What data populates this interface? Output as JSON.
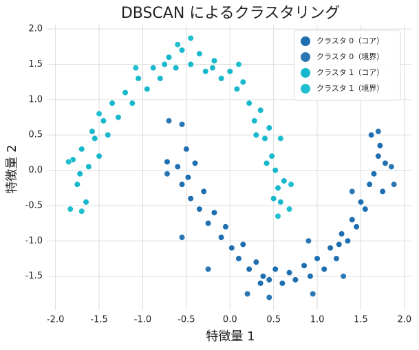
{
  "chart_data": {
    "type": "scatter",
    "title": "DBSCAN によるクラスタリング",
    "x_label": "特徴量 1",
    "y_label": "特徴量 2",
    "xlim": [
      -2.1,
      2.08
    ],
    "ylim": [
      -1.98,
      2.06
    ],
    "xticks": [
      {
        "value": -2,
        "label": "-2.0"
      },
      -1.5,
      {
        "value": -1,
        "label": "-1.0"
      },
      -0.5,
      {
        "value": 0,
        "label": "0.0"
      },
      0.5,
      {
        "value": 1,
        "label": "1.0"
      },
      1.5,
      {
        "value": 2,
        "label": "2.0"
      }
    ],
    "yticks": [
      {
        "value": -1.5,
        "label": "-1.5"
      },
      {
        "value": -1,
        "label": "-1.0"
      },
      -0.5,
      {
        "value": 0,
        "label": "0.0"
      },
      0.5,
      {
        "value": 1,
        "label": "1.0"
      },
      1.5,
      {
        "value": 2,
        "label": "2.0"
      }
    ],
    "grid": true,
    "legend": "upper right",
    "series": [
      {
        "name": "クラスタ 0（コア）",
        "color": "#1f6fb0",
        "x": [
          -0.72,
          -0.6,
          -0.55,
          -0.5,
          -0.45,
          -0.4,
          -0.35,
          -0.3,
          -0.25,
          -0.18,
          -0.1,
          -0.05,
          0.02,
          0.1,
          0.15,
          0.22,
          0.3,
          0.38,
          0.45,
          0.52,
          0.6,
          0.68,
          0.75,
          0.85,
          0.92,
          1.0,
          1.08,
          1.15,
          1.22,
          1.28,
          1.35,
          1.4,
          1.45,
          1.5,
          1.55,
          1.6,
          1.65,
          1.7,
          1.72,
          1.78,
          1.75,
          1.62,
          -0.48,
          0.35,
          1.25
        ],
        "y": [
          0.12,
          0.05,
          -0.2,
          0.3,
          -0.4,
          0.1,
          -0.55,
          -0.3,
          -0.75,
          -0.6,
          -0.95,
          -0.8,
          -1.1,
          -1.25,
          -1.05,
          -1.4,
          -1.3,
          -1.5,
          -1.55,
          -1.4,
          -1.6,
          -1.45,
          -1.55,
          -1.35,
          -1.5,
          -1.25,
          -1.4,
          -1.1,
          -1.25,
          -0.9,
          -1.0,
          -0.7,
          -0.8,
          -0.45,
          -0.55,
          -0.2,
          -0.05,
          0.2,
          0.35,
          0.1,
          -0.3,
          0.5,
          -0.1,
          -1.6,
          -1.05
        ]
      },
      {
        "name": "クラスタ 0（境界）",
        "color": "#2a77b4",
        "x": [
          -0.7,
          -0.55,
          -0.72,
          -0.55,
          -0.25,
          0.2,
          0.45,
          0.95,
          0.9,
          1.3,
          1.7,
          1.88,
          1.85,
          1.4
        ],
        "y": [
          0.7,
          0.65,
          -0.05,
          -0.95,
          -1.4,
          -1.75,
          -1.8,
          -1.75,
          -1.0,
          -1.5,
          0.55,
          -0.2,
          0.05,
          -0.3
        ]
      },
      {
        "name": "クラスタ 1（コア）",
        "color": "#17b8cc",
        "x": [
          -1.8,
          -1.75,
          -1.7,
          -1.65,
          -1.62,
          -1.55,
          -1.5,
          -1.45,
          -1.4,
          -1.35,
          -1.28,
          -1.2,
          -1.12,
          -1.05,
          -0.95,
          -0.88,
          -0.8,
          -0.7,
          -0.62,
          -0.55,
          -0.45,
          -0.35,
          -0.28,
          -0.18,
          -0.1,
          0.0,
          0.08,
          0.15,
          0.22,
          0.28,
          0.35,
          0.4,
          0.45,
          0.48,
          0.52,
          0.55,
          0.58,
          0.5,
          0.42,
          -1.72,
          -1.58,
          -0.75,
          -0.2,
          0.3,
          0.62
        ],
        "y": [
          0.15,
          -0.2,
          0.3,
          -0.45,
          0.05,
          0.45,
          0.2,
          0.7,
          0.5,
          0.95,
          0.75,
          1.1,
          0.95,
          1.3,
          1.15,
          1.45,
          1.3,
          1.6,
          1.45,
          1.7,
          1.5,
          1.65,
          1.4,
          1.55,
          1.3,
          1.4,
          1.15,
          1.25,
          0.95,
          0.7,
          0.85,
          0.45,
          0.6,
          0.2,
          0.0,
          -0.25,
          -0.45,
          -0.4,
          0.1,
          -0.05,
          0.55,
          1.5,
          1.45,
          0.5,
          -0.15
        ]
      },
      {
        "name": "クラスタ 1（境界）",
        "color": "#1fbfd0",
        "x": [
          -1.85,
          -1.83,
          -1.7,
          -1.5,
          -1.08,
          -0.6,
          -0.45,
          0.1,
          0.58,
          0.55,
          0.68,
          0.7
        ],
        "y": [
          0.12,
          -0.55,
          -0.58,
          0.8,
          1.45,
          1.78,
          1.87,
          1.5,
          0.45,
          -0.65,
          -0.55,
          -0.2
        ]
      }
    ]
  }
}
